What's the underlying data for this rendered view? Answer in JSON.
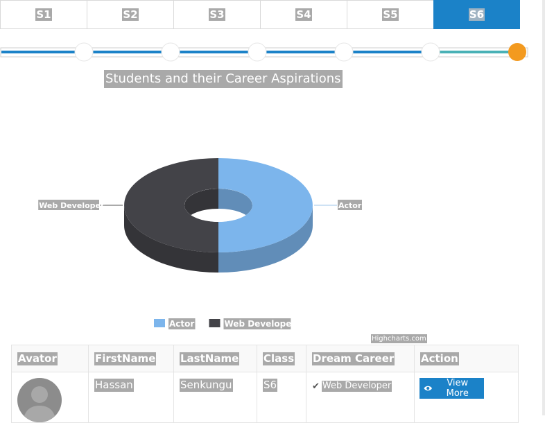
{
  "tabs": [
    {
      "label": "S1",
      "active": false
    },
    {
      "label": "S2",
      "active": false
    },
    {
      "label": "S3",
      "active": false
    },
    {
      "label": "S4",
      "active": false
    },
    {
      "label": "S5",
      "active": false
    },
    {
      "label": "S6",
      "active": true
    }
  ],
  "progress": {
    "steps": 6,
    "current": 6
  },
  "chart_data": {
    "type": "pie",
    "style": "3d-donut",
    "title": "Students and their Career Aspirations",
    "series": [
      {
        "name": "Actor",
        "value": 50,
        "color": "#7cb5ec"
      },
      {
        "name": "Web Developer",
        "value": 50,
        "color": "#434348"
      }
    ],
    "legend": {
      "placement": "bottom-center",
      "items": [
        "Actor",
        "Web Developer"
      ]
    },
    "credit": "Highcharts.com"
  },
  "table": {
    "headers": [
      "Avator",
      "FirstName",
      "LastName",
      "Class",
      "Dream Career",
      "Action"
    ],
    "rows": [
      {
        "first_name": "Hassan",
        "last_name": "Senkungu",
        "class": "S6",
        "dream_career": "Web Developer",
        "action": "View More"
      }
    ]
  },
  "colors": {
    "primary": "#1b82c8",
    "accent": "#f39a1f"
  }
}
